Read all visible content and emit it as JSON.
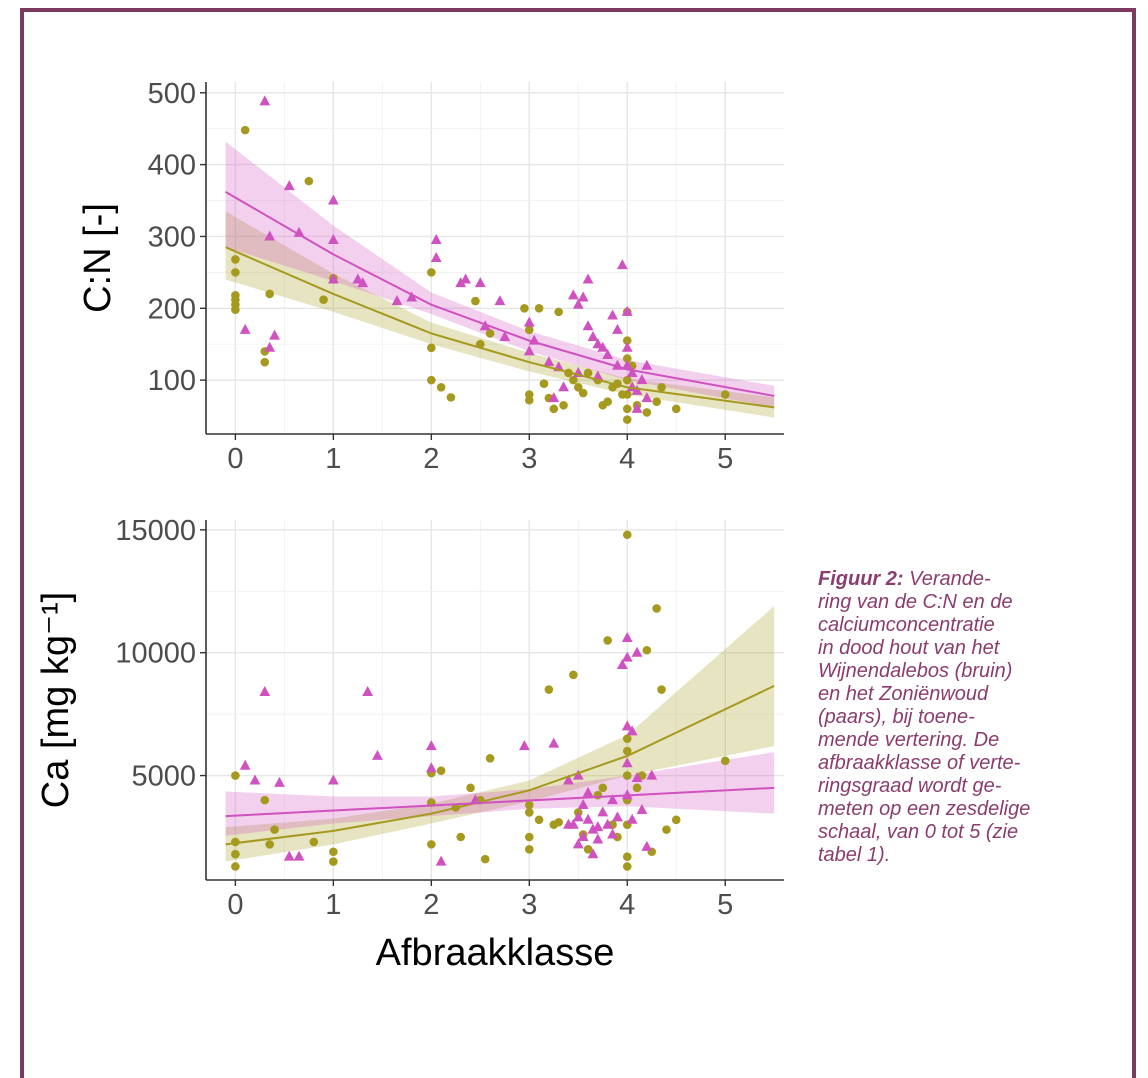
{
  "caption": {
    "label": "Figuur 2:",
    "lines": [
      "Verande-",
      "ring van de C:N en de",
      "calciumconcentratie",
      "in dood hout van het",
      "Wijnendalebos (bruin)",
      "en het Zoniënwoud",
      "(paars), bij toene-",
      "mende vertering. De",
      "afbraakklasse of verte-",
      "ringsgraad wordt ge-",
      "meten op een zesdelige",
      "schaal, van 0 tot 5 (zie",
      "tabel 1)."
    ]
  },
  "colors": {
    "wijnendale": "#a59a1e",
    "zonien": "#d052c0",
    "frame": "#7e3a5e",
    "caption": "#8a3d6e"
  },
  "chart_data": [
    {
      "type": "scatter",
      "ylabel": "C:N [-]",
      "xlabel": "",
      "xlim": [
        -0.3,
        5.6
      ],
      "ylim": [
        25,
        515
      ],
      "xticks": [
        "0",
        "1",
        "2",
        "3",
        "4",
        "5"
      ],
      "yticks": [
        "100",
        "200",
        "300",
        "400",
        "500"
      ],
      "grid": true,
      "series": [
        {
          "marker": "circle",
          "points": [
            [
              0.1,
              448
            ],
            [
              0,
              268
            ],
            [
              0,
              250
            ],
            [
              0,
              218
            ],
            [
              0,
              212
            ],
            [
              0,
              205
            ],
            [
              0,
              198
            ],
            [
              0.35,
              220
            ],
            [
              0.3,
              140
            ],
            [
              0.3,
              125
            ],
            [
              0.75,
              377
            ],
            [
              0.9,
              212
            ],
            [
              1,
              242
            ],
            [
              2,
              250
            ],
            [
              2,
              145
            ],
            [
              2,
              100
            ],
            [
              2.1,
              90
            ],
            [
              2.2,
              76
            ],
            [
              2.45,
              210
            ],
            [
              2.5,
              150
            ],
            [
              2.6,
              165
            ],
            [
              2.95,
              200
            ],
            [
              3,
              170
            ],
            [
              3,
              80
            ],
            [
              3,
              72
            ],
            [
              3.1,
              200
            ],
            [
              3.15,
              95
            ],
            [
              3.2,
              75
            ],
            [
              3.25,
              60
            ],
            [
              3.3,
              195
            ],
            [
              3.35,
              65
            ],
            [
              3.4,
              110
            ],
            [
              3.45,
              100
            ],
            [
              3.5,
              90
            ],
            [
              3.55,
              82
            ],
            [
              3.6,
              110
            ],
            [
              3.7,
              100
            ],
            [
              3.75,
              65
            ],
            [
              3.8,
              70
            ],
            [
              3.85,
              90
            ],
            [
              3.9,
              95
            ],
            [
              3.95,
              80
            ],
            [
              4,
              195
            ],
            [
              4,
              155
            ],
            [
              4,
              130
            ],
            [
              4,
              100
            ],
            [
              4,
              80
            ],
            [
              4,
              60
            ],
            [
              4,
              45
            ],
            [
              4.05,
              120
            ],
            [
              4.1,
              65
            ],
            [
              4.2,
              55
            ],
            [
              4.3,
              70
            ],
            [
              4.35,
              90
            ],
            [
              4.5,
              60
            ],
            [
              5,
              80
            ]
          ],
          "fit": [
            [
              -0.1,
              285
            ],
            [
              1,
              220
            ],
            [
              2,
              165
            ],
            [
              3,
              125
            ],
            [
              4,
              90
            ],
            [
              5.5,
              62
            ]
          ],
          "band": [
            [
              -0.1,
              240,
              335
            ],
            [
              1,
              195,
              248
            ],
            [
              2,
              150,
              180
            ],
            [
              3,
              112,
              138
            ],
            [
              4,
              80,
              102
            ],
            [
              5.5,
              48,
              76
            ]
          ]
        },
        {
          "marker": "triangle",
          "points": [
            [
              0.3,
              488
            ],
            [
              0.55,
              370
            ],
            [
              0.65,
              305
            ],
            [
              1,
              350
            ],
            [
              1,
              295
            ],
            [
              0.35,
              300
            ],
            [
              0.1,
              170
            ],
            [
              0.4,
              162
            ],
            [
              0.35,
              145
            ],
            [
              1,
              240
            ],
            [
              1.25,
              240
            ],
            [
              1.3,
              235
            ],
            [
              1.65,
              210
            ],
            [
              1.8,
              215
            ],
            [
              2.05,
              270
            ],
            [
              2.05,
              295
            ],
            [
              2.3,
              235
            ],
            [
              2.35,
              240
            ],
            [
              2.5,
              235
            ],
            [
              2.7,
              210
            ],
            [
              2.55,
              175
            ],
            [
              2.75,
              160
            ],
            [
              3,
              180
            ],
            [
              3,
              140
            ],
            [
              3.05,
              155
            ],
            [
              3.2,
              125
            ],
            [
              3.35,
              90
            ],
            [
              3.45,
              218
            ],
            [
              3.5,
              205
            ],
            [
              3.55,
              215
            ],
            [
              3.6,
              240
            ],
            [
              3.6,
              175
            ],
            [
              3.65,
              160
            ],
            [
              3.7,
              150
            ],
            [
              3.75,
              145
            ],
            [
              3.8,
              135
            ],
            [
              3.85,
              190
            ],
            [
              3.9,
              170
            ],
            [
              3.9,
              120
            ],
            [
              3.95,
              260
            ],
            [
              4,
              195
            ],
            [
              4,
              145
            ],
            [
              4,
              120
            ],
            [
              4.05,
              110
            ],
            [
              4.05,
              90
            ],
            [
              4.1,
              85
            ],
            [
              4.1,
              60
            ],
            [
              4.15,
              100
            ],
            [
              4.2,
              120
            ],
            [
              4.2,
              75
            ],
            [
              3.5,
              110
            ],
            [
              3.7,
              105
            ],
            [
              3.3,
              118
            ],
            [
              3.25,
              75
            ]
          ],
          "fit": [
            [
              -0.1,
              362
            ],
            [
              1,
              275
            ],
            [
              2,
              205
            ],
            [
              3,
              155
            ],
            [
              4,
              115
            ],
            [
              5.5,
              78
            ]
          ],
          "band": [
            [
              -0.1,
              285,
              432
            ],
            [
              1,
              238,
              315
            ],
            [
              2,
              192,
              222
            ],
            [
              3,
              140,
              168
            ],
            [
              4,
              100,
              128
            ],
            [
              5.5,
              62,
              92
            ]
          ]
        }
      ]
    },
    {
      "type": "scatter",
      "ylabel": "Ca [mg kg⁻¹]",
      "xlabel": "Afbraakklasse",
      "xlim": [
        -0.3,
        5.6
      ],
      "ylim": [
        750,
        15400
      ],
      "xticks": [
        "0",
        "1",
        "2",
        "3",
        "4",
        "5"
      ],
      "yticks": [
        "5000",
        "10000",
        "15000"
      ],
      "grid": true,
      "series": [
        {
          "marker": "circle",
          "points": [
            [
              0,
              5000
            ],
            [
              0,
              2300
            ],
            [
              0,
              1800
            ],
            [
              0,
              1300
            ],
            [
              0.3,
              4000
            ],
            [
              0.35,
              2200
            ],
            [
              0.4,
              2800
            ],
            [
              0.8,
              2300
            ],
            [
              1,
              1900
            ],
            [
              1,
              1500
            ],
            [
              2,
              5100
            ],
            [
              2,
              3900
            ],
            [
              2,
              2200
            ],
            [
              2.1,
              5200
            ],
            [
              2.25,
              3700
            ],
            [
              2.3,
              2500
            ],
            [
              2.4,
              4500
            ],
            [
              2.5,
              4000
            ],
            [
              2.6,
              5700
            ],
            [
              2.55,
              1600
            ],
            [
              3,
              3800
            ],
            [
              3,
              3500
            ],
            [
              3,
              2500
            ],
            [
              3,
              2000
            ],
            [
              3.1,
              3200
            ],
            [
              3.2,
              8500
            ],
            [
              3.25,
              3000
            ],
            [
              3.3,
              3100
            ],
            [
              3.45,
              9100
            ],
            [
              3.5,
              3500
            ],
            [
              3.55,
              2600
            ],
            [
              3.6,
              2000
            ],
            [
              3.7,
              4200
            ],
            [
              3.75,
              4500
            ],
            [
              3.8,
              10500
            ],
            [
              3.85,
              3000
            ],
            [
              3.9,
              2500
            ],
            [
              4,
              14800
            ],
            [
              4,
              6500
            ],
            [
              4,
              6000
            ],
            [
              4,
              5000
            ],
            [
              4,
              4000
            ],
            [
              4,
              3000
            ],
            [
              4,
              1700
            ],
            [
              4,
              1300
            ],
            [
              4.1,
              4500
            ],
            [
              4.15,
              5000
            ],
            [
              4.2,
              10100
            ],
            [
              4.25,
              1900
            ],
            [
              4.3,
              11800
            ],
            [
              4.35,
              8500
            ],
            [
              4.4,
              2800
            ],
            [
              4.5,
              3200
            ],
            [
              5,
              5600
            ]
          ],
          "fit": [
            [
              -0.1,
              2200
            ],
            [
              1,
              2750
            ],
            [
              2,
              3450
            ],
            [
              3,
              4400
            ],
            [
              4,
              5800
            ],
            [
              5.5,
              8650
            ]
          ],
          "band": [
            [
              -0.1,
              1500,
              2900
            ],
            [
              1,
              2200,
              3250
            ],
            [
              2,
              3050,
              3850
            ],
            [
              3,
              3950,
              4800
            ],
            [
              4,
              5000,
              6650
            ],
            [
              5.5,
              6200,
              11900
            ]
          ]
        },
        {
          "marker": "triangle",
          "points": [
            [
              0.1,
              5400
            ],
            [
              0.2,
              4800
            ],
            [
              0.45,
              4700
            ],
            [
              0.3,
              8400
            ],
            [
              0.55,
              1700
            ],
            [
              0.65,
              1700
            ],
            [
              1,
              4800
            ],
            [
              1.35,
              8400
            ],
            [
              1.45,
              5800
            ],
            [
              2,
              6200
            ],
            [
              2,
              5300
            ],
            [
              2.1,
              1500
            ],
            [
              2.45,
              4000
            ],
            [
              2.95,
              6200
            ],
            [
              3.25,
              6300
            ],
            [
              3.4,
              4800
            ],
            [
              3.5,
              5000
            ],
            [
              3.55,
              3800
            ],
            [
              3.6,
              3200
            ],
            [
              3.55,
              2500
            ],
            [
              3.65,
              2800
            ],
            [
              3.7,
              2400
            ],
            [
              3.75,
              3500
            ],
            [
              3.8,
              3000
            ],
            [
              3.85,
              2600
            ],
            [
              3.9,
              3300
            ],
            [
              3.95,
              9500
            ],
            [
              4,
              10600
            ],
            [
              4,
              9800
            ],
            [
              4,
              7000
            ],
            [
              4,
              5500
            ],
            [
              4,
              4200
            ],
            [
              4.05,
              3200
            ],
            [
              4.1,
              4900
            ],
            [
              4.15,
              3600
            ],
            [
              4.2,
              2100
            ],
            [
              4.25,
              5000
            ],
            [
              3.45,
              3000
            ],
            [
              3.5,
              2200
            ],
            [
              3.65,
              1800
            ],
            [
              3.7,
              2900
            ],
            [
              3.85,
              4000
            ],
            [
              4.1,
              10000
            ],
            [
              4.05,
              6800
            ],
            [
              3.6,
              4300
            ],
            [
              3.4,
              3000
            ],
            [
              3.5,
              3300
            ]
          ],
          "fit": [
            [
              -0.1,
              3350
            ],
            [
              5.5,
              4500
            ]
          ],
          "band": [
            [
              -0.1,
              2550,
              4350
            ],
            [
              1,
              3050,
              4150
            ],
            [
              2,
              3350,
              4150
            ],
            [
              3,
              3650,
              4450
            ],
            [
              4,
              3750,
              5000
            ],
            [
              5.5,
              3450,
              5950
            ]
          ]
        }
      ]
    }
  ]
}
